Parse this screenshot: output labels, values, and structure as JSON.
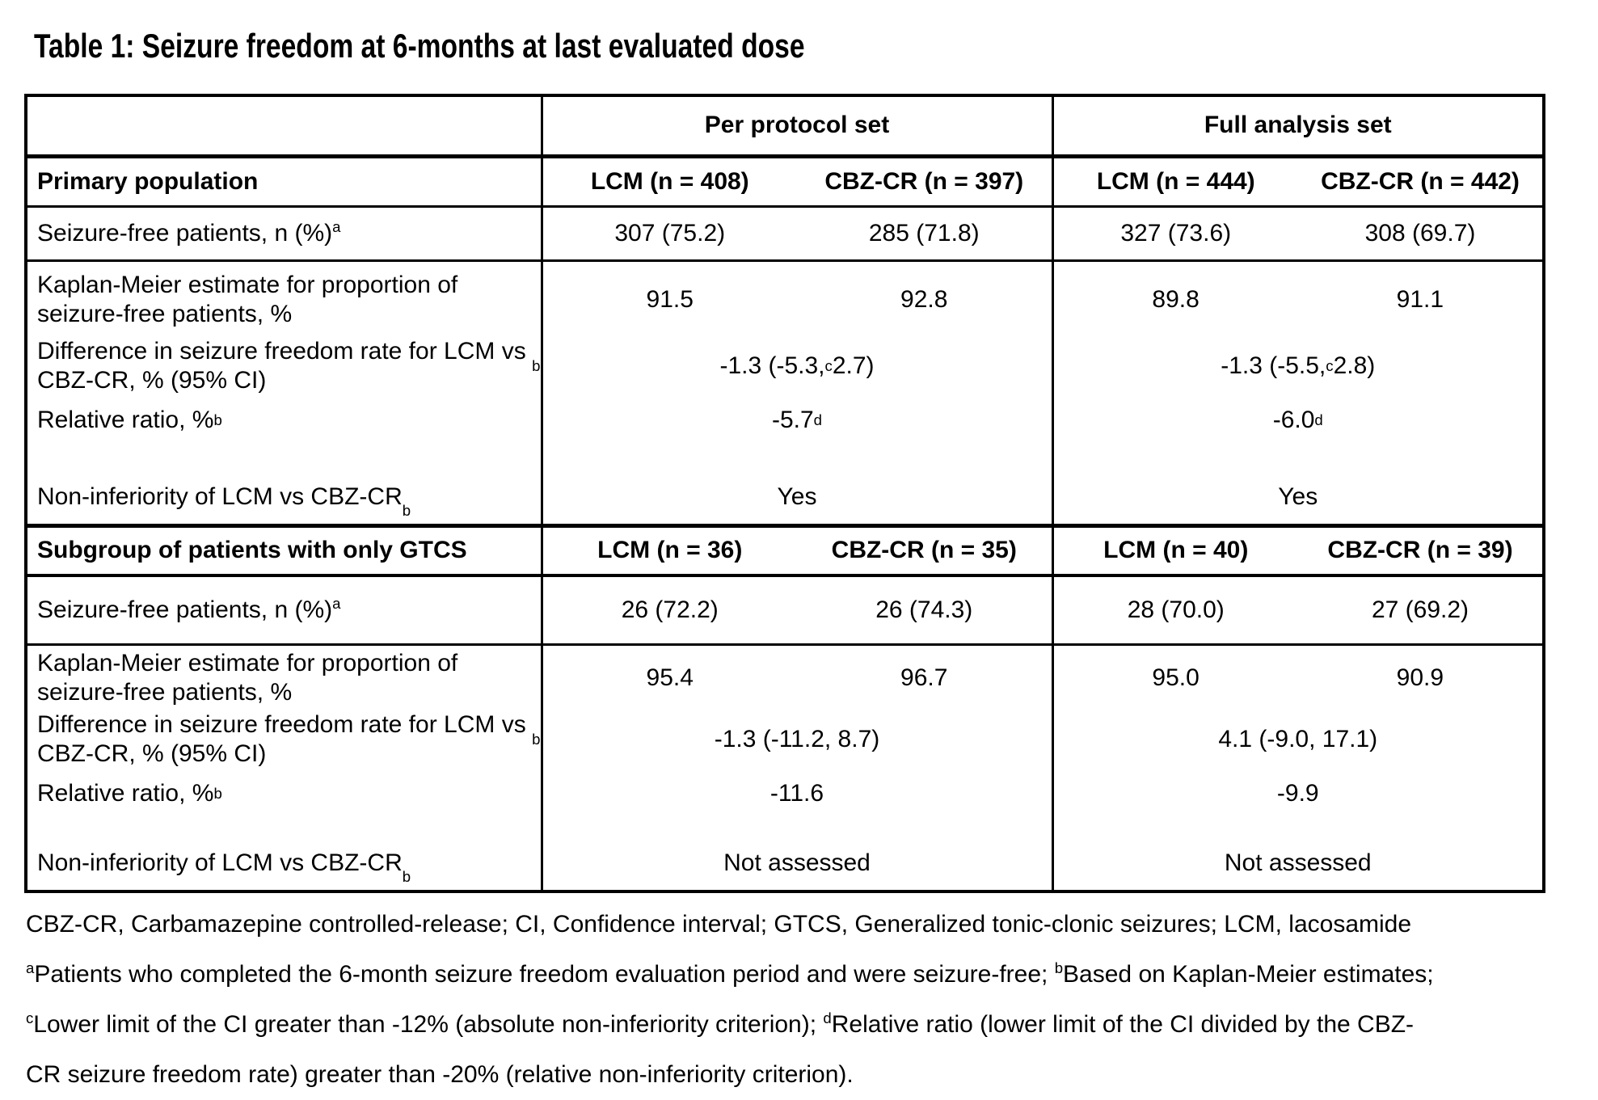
{
  "title": "Table 1: Seizure freedom at 6-months at last evaluated dose",
  "table": {
    "set_headers": {
      "per_protocol": "Per protocol set",
      "full_analysis": "Full analysis set"
    },
    "primary": {
      "section_label": "Primary population",
      "col_headers": [
        "LCM (n = 408)",
        "CBZ-CR (n = 397)",
        "LCM (n = 444)",
        "CBZ-CR (n = 442)"
      ],
      "seizure_free": {
        "label": "Seizure-free patients, n (%)^a",
        "values": [
          "307 (75.2)",
          "285 (71.8)",
          "327 (73.6)",
          "308 (69.7)"
        ]
      },
      "km_estimate": {
        "label": "Kaplan-Meier estimate for proportion of seizure-free patients, %",
        "values": [
          "91.5",
          "92.8",
          "89.8",
          "91.1"
        ]
      },
      "difference": {
        "label": "Difference in seizure freedom rate for LCM vs CBZ-CR, % (95% CI)^b",
        "values": [
          "-1.3 (-5.3,^c 2.7)",
          "-1.3 (-5.5,^c 2.8)"
        ]
      },
      "relative_ratio": {
        "label": "Relative ratio, %^b",
        "values": [
          "-5.7^d",
          "-6.0^d"
        ]
      },
      "non_inferiority": {
        "label": "Non-inferiority of LCM vs CBZ-CR^b",
        "values": [
          "Yes",
          "Yes"
        ]
      }
    },
    "subgroup": {
      "section_label": "Subgroup of patients with only GTCS",
      "col_headers": [
        "LCM (n = 36)",
        "CBZ-CR (n = 35)",
        "LCM (n = 40)",
        "CBZ-CR (n = 39)"
      ],
      "seizure_free": {
        "label": "Seizure-free patients, n (%)^a",
        "values": [
          "26 (72.2)",
          "26 (74.3)",
          "28 (70.0)",
          "27 (69.2)"
        ]
      },
      "km_estimate": {
        "label": "Kaplan-Meier estimate for proportion of seizure-free patients, %",
        "values": [
          "95.4",
          "96.7",
          "95.0",
          "90.9"
        ]
      },
      "difference": {
        "label": "Difference in seizure freedom rate for LCM vs CBZ-CR, % (95% CI)^b",
        "values": [
          "-1.3 (-11.2, 8.7)",
          "4.1 (-9.0, 17.1)"
        ]
      },
      "relative_ratio": {
        "label": "Relative ratio, %^b",
        "values": [
          "-11.6",
          "-9.9"
        ]
      },
      "non_inferiority": {
        "label": "Non-inferiority of LCM vs CBZ-CR^b",
        "values": [
          "Not assessed",
          "Not assessed"
        ]
      }
    }
  },
  "footnotes": [
    "CBZ-CR, Carbamazepine controlled-release; CI, Confidence interval; GTCS, Generalized tonic-clonic seizures; LCM, lacosamide",
    "^aPatients who completed the 6-month seizure freedom evaluation period and were seizure-free; ^bBased on Kaplan-Meier estimates;",
    "^cLower limit of the CI greater than -12% (absolute non-inferiority criterion); ^dRelative ratio (lower limit of the CI divided by the CBZ-",
    "CR seizure freedom rate) greater than -20% (relative non-inferiority criterion)."
  ]
}
